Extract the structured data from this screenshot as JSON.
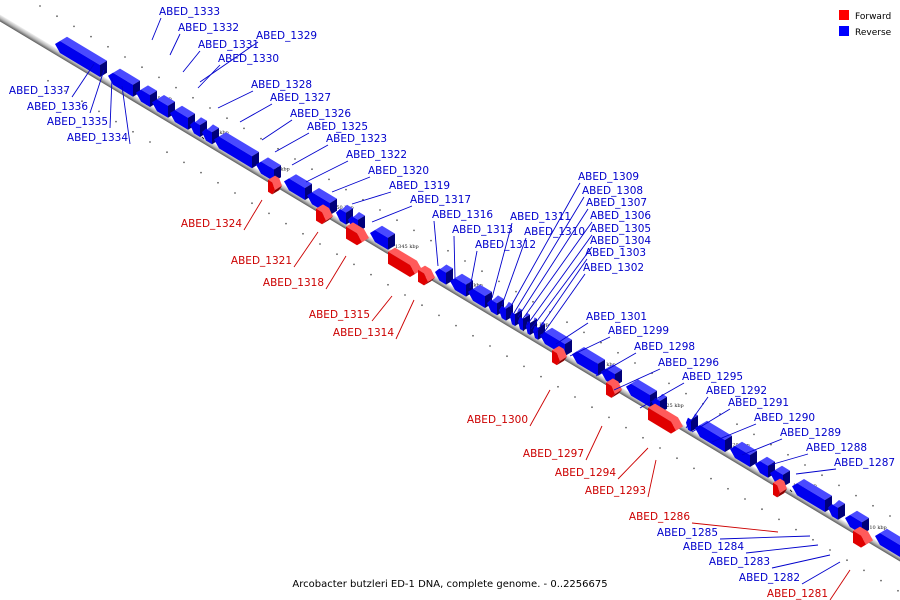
{
  "caption": "Arcobacter butzleri ED-1 DNA, complete genome. - 0..2256675",
  "legend": [
    {
      "label": "Forward",
      "color": "#ff0000"
    },
    {
      "label": "Reverse",
      "color": "#0000ff"
    }
  ],
  "colors": {
    "forward": "#e00000",
    "reverse": "#0000ee",
    "backbone": "#888888"
  },
  "ticks": [
    "1365 kbp",
    "1360 kbp",
    "1355 kbp",
    "1350 kbp",
    "1345 kbp",
    "1340 kbp",
    "1335 kbp",
    "1330 kbp",
    "1325 kbp",
    "1320 kbp",
    "1315 kbp",
    "1310 kbp"
  ],
  "reverse_genes": [
    "ABED_1333",
    "ABED_1332",
    "ABED_1331",
    "ABED_1329",
    "ABED_1330",
    "ABED_1337",
    "ABED_1336",
    "ABED_1335",
    "ABED_1334",
    "ABED_1328",
    "ABED_1327",
    "ABED_1326",
    "ABED_1325",
    "ABED_1323",
    "ABED_1322",
    "ABED_1320",
    "ABED_1319",
    "ABED_1317",
    "ABED_1316",
    "ABED_1313",
    "ABED_1312",
    "ABED_1311",
    "ABED_1310",
    "ABED_1309",
    "ABED_1308",
    "ABED_1307",
    "ABED_1306",
    "ABED_1305",
    "ABED_1304",
    "ABED_1303",
    "ABED_1302",
    "ABED_1301",
    "ABED_1299",
    "ABED_1298",
    "ABED_1296",
    "ABED_1295",
    "ABED_1292",
    "ABED_1291",
    "ABED_1290",
    "ABED_1289",
    "ABED_1288",
    "ABED_1287",
    "ABED_1285",
    "ABED_1284",
    "ABED_1283",
    "ABED_1282"
  ],
  "forward_genes": [
    "ABED_1324",
    "ABED_1321",
    "ABED_1318",
    "ABED_1315",
    "ABED_1314",
    "ABED_1300",
    "ABED_1297",
    "ABED_1294",
    "ABED_1293",
    "ABED_1286",
    "ABED_1281"
  ]
}
